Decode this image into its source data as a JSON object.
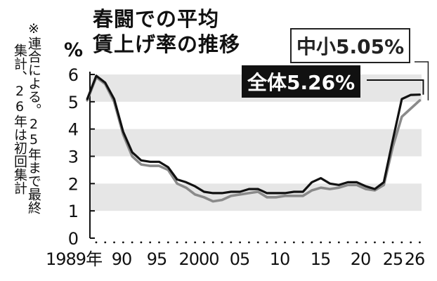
{
  "note": {
    "columns": [
      "※連合による。25年まで最終",
      "集計、26年は初回集計"
    ]
  },
  "title": {
    "line1": "春闘での平均",
    "line2": "賃上げ率の推移"
  },
  "unit": "%",
  "callouts": {
    "sme": "中小5.05%",
    "all": "全体5.26%"
  },
  "chart_data": {
    "type": "line",
    "title": "春闘での平均賃上げ率の推移",
    "ylabel": "%",
    "ylim": [
      0,
      6
    ],
    "yticks": [
      "0",
      "1",
      "2",
      "3",
      "4",
      "5",
      "6"
    ],
    "xticks": [
      {
        "year": 1989,
        "label": "1989年"
      },
      {
        "year": 1990,
        "label": "90"
      },
      {
        "year": 1995,
        "label": "95"
      },
      {
        "year": 2000,
        "label": "2000"
      },
      {
        "year": 2005,
        "label": "05"
      },
      {
        "year": 2010,
        "label": "10"
      },
      {
        "year": 2015,
        "label": "15"
      },
      {
        "year": 2020,
        "label": "20"
      },
      {
        "year": 2025,
        "label": "25"
      },
      {
        "year": 2026,
        "label": "26"
      }
    ],
    "x": [
      1989,
      1990,
      1991,
      1992,
      1993,
      1994,
      1995,
      1996,
      1997,
      1998,
      1999,
      2000,
      2001,
      2002,
      2003,
      2004,
      2005,
      2006,
      2007,
      2008,
      2009,
      2010,
      2011,
      2012,
      2013,
      2014,
      2015,
      2016,
      2017,
      2018,
      2019,
      2020,
      2021,
      2022,
      2023,
      2024,
      2025,
      2026
    ],
    "series": [
      {
        "name": "全体",
        "color": "#111111",
        "values": [
          5.1,
          5.95,
          5.7,
          5.1,
          3.9,
          3.15,
          2.85,
          2.8,
          2.8,
          2.6,
          2.15,
          2.05,
          1.9,
          1.7,
          1.65,
          1.65,
          1.7,
          1.7,
          1.8,
          1.8,
          1.65,
          1.65,
          1.65,
          1.7,
          1.7,
          2.05,
          2.2,
          2.0,
          1.95,
          2.05,
          2.05,
          1.9,
          1.8,
          2.05,
          3.6,
          5.1,
          5.25,
          5.26
        ]
      },
      {
        "name": "中小",
        "color": "#8a8a8a",
        "values": [
          5.05,
          5.9,
          5.65,
          5.0,
          3.8,
          3.0,
          2.7,
          2.65,
          2.65,
          2.5,
          2.0,
          1.85,
          1.6,
          1.5,
          1.35,
          1.4,
          1.55,
          1.6,
          1.65,
          1.7,
          1.5,
          1.5,
          1.55,
          1.55,
          1.55,
          1.75,
          1.85,
          1.8,
          1.85,
          1.95,
          1.95,
          1.8,
          1.75,
          1.95,
          3.35,
          4.45,
          4.75,
          5.05
        ]
      }
    ],
    "bands": [
      [
        1,
        2
      ],
      [
        3,
        4
      ],
      [
        5,
        6
      ]
    ],
    "grid": false,
    "legend": "callouts"
  }
}
